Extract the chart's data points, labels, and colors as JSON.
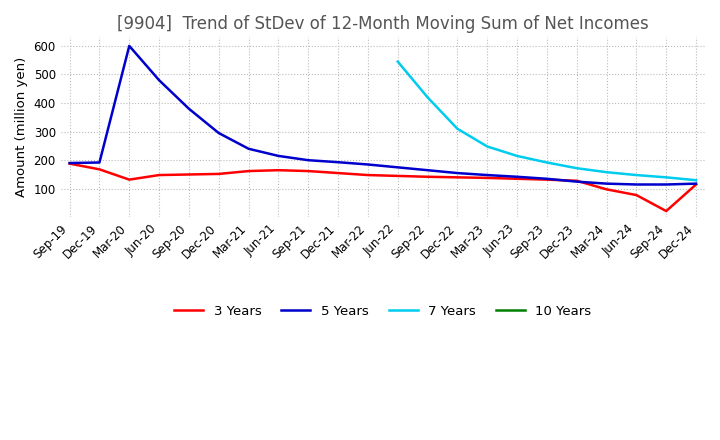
{
  "title": "[9904]  Trend of StDev of 12-Month Moving Sum of Net Incomes",
  "ylabel": "Amount (million yen)",
  "ylim": [
    0,
    630
  ],
  "yticks": [
    100,
    200,
    300,
    400,
    500,
    600
  ],
  "background_color": "#ffffff",
  "grid_color": "#bbbbbb",
  "line_colors": {
    "3y": "#ff0000",
    "5y": "#0000cc",
    "7y": "#00ccee",
    "10y": "#008000"
  },
  "legend_labels": [
    "3 Years",
    "5 Years",
    "7 Years",
    "10 Years"
  ],
  "x_labels": [
    "Sep-19",
    "Dec-19",
    "Mar-20",
    "Jun-20",
    "Sep-20",
    "Dec-20",
    "Mar-21",
    "Jun-21",
    "Sep-21",
    "Dec-21",
    "Mar-22",
    "Jun-22",
    "Sep-22",
    "Dec-22",
    "Mar-23",
    "Jun-23",
    "Sep-23",
    "Dec-23",
    "Mar-24",
    "Jun-24",
    "Sep-24",
    "Dec-24"
  ],
  "series_3y": [
    188,
    168,
    132,
    148,
    150,
    152,
    162,
    165,
    162,
    155,
    148,
    145,
    142,
    140,
    138,
    135,
    132,
    128,
    98,
    78,
    22,
    115
  ],
  "series_5y": [
    190,
    192,
    600,
    480,
    380,
    295,
    240,
    215,
    200,
    193,
    185,
    175,
    165,
    155,
    148,
    142,
    135,
    125,
    118,
    115,
    115,
    118
  ],
  "series_7y": [
    null,
    null,
    null,
    null,
    null,
    null,
    null,
    null,
    null,
    null,
    null,
    545,
    420,
    310,
    248,
    215,
    192,
    172,
    158,
    148,
    140,
    130
  ],
  "series_10y": [
    null,
    null,
    null,
    null,
    null,
    null,
    null,
    null,
    null,
    null,
    null,
    null,
    null,
    null,
    null,
    null,
    null,
    null,
    null,
    null,
    null,
    null
  ],
  "title_fontsize": 12,
  "tick_fontsize": 8.5,
  "legend_fontsize": 9.5
}
